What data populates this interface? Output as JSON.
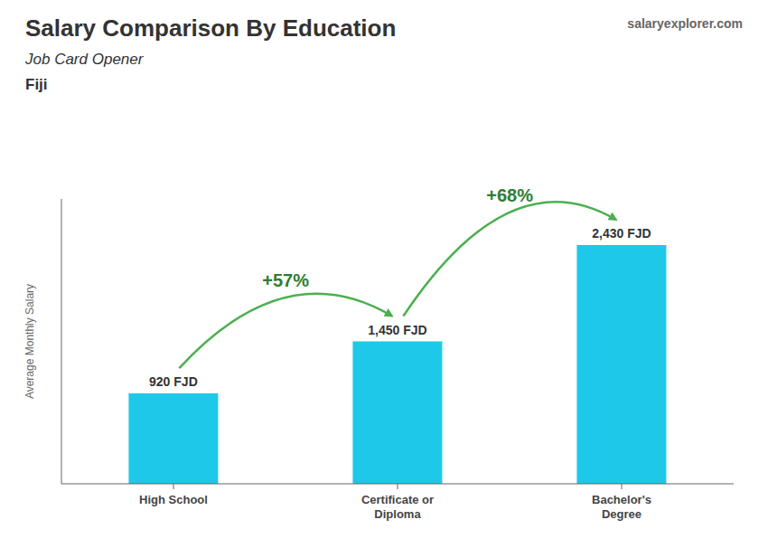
{
  "chart_data": {
    "type": "bar",
    "title": "Salary Comparison By Education",
    "subtitle": "Job Card Opener",
    "country": "Fiji",
    "source": "salaryexplorer.com",
    "y_label": "Average Monthly Salary",
    "categories": [
      "High School",
      "Certificate or\nDiploma",
      "Bachelor's\nDegree"
    ],
    "values": [
      920,
      1450,
      2430
    ],
    "value_labels": [
      "920 FJD",
      "1,450 FJD",
      "2,430 FJD"
    ],
    "data_labels": true,
    "annotations": [
      "+57%",
      "+68%"
    ],
    "color": "#1EC8E8",
    "ylim": [
      0,
      2900
    ],
    "tick_labels": "x",
    "grid": false
  }
}
